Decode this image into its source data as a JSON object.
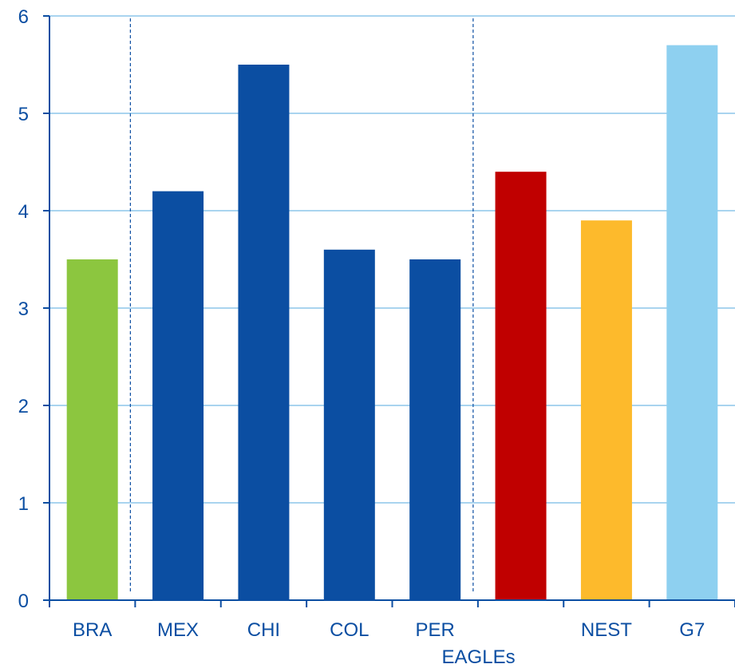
{
  "chart_data": {
    "type": "bar",
    "title": "",
    "xlabel": "",
    "ylabel": "",
    "ylim": [
      0,
      6
    ],
    "yticks": [
      "0",
      "1",
      "2",
      "3",
      "4",
      "5",
      "6"
    ],
    "grid": true,
    "categories": [
      "BRA",
      "MEX",
      "CHI",
      "COL",
      "PER",
      "EAGLEs",
      "NEST",
      "G7"
    ],
    "values": [
      3.5,
      4.2,
      5.5,
      3.6,
      3.5,
      4.4,
      3.9,
      5.7
    ],
    "bar_colors": [
      "#8CC63F",
      "#0B4EA2",
      "#0B4EA2",
      "#0B4EA2",
      "#0B4EA2",
      "#C00000",
      "#FDBA2C",
      "#8ED0F0"
    ],
    "separators_after_categories": [
      "BRA",
      "PER"
    ],
    "colors": {
      "axis": "#0B4EA2",
      "gridline": "#A9D4EF",
      "tick_text": "#0B4EA2",
      "separator": "#0B4EA2"
    }
  }
}
